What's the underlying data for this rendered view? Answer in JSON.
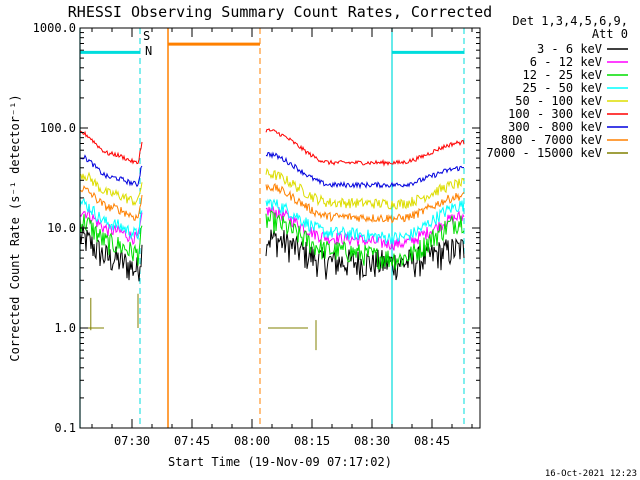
{
  "chart_data": {
    "type": "line",
    "title": "RHESSI Observing Summary Count Rates, Corrected",
    "xlabel": "Start Time (19-Nov-09 07:17:02)",
    "ylabel": "Corrected Count Rate (s⁻¹ detector⁻¹)",
    "yscale": "log",
    "ylim": [
      0.1,
      1000
    ],
    "xlim_minutes_after_0717": [
      0,
      100
    ],
    "y_ticks": [
      "0.1",
      "1.0",
      "10.0",
      "100.0",
      "1000.0"
    ],
    "x_ticks": [
      {
        "label": "07:30",
        "minute": 13
      },
      {
        "label": "07:45",
        "minute": 28
      },
      {
        "label": "08:00",
        "minute": 43
      },
      {
        "label": "08:15",
        "minute": 58
      },
      {
        "label": "08:30",
        "minute": 73
      },
      {
        "label": "08:45",
        "minute": 88
      }
    ],
    "legend_header": [
      "Det 1,3,4,5,6,9,",
      "Att 0"
    ],
    "legend_position": "right",
    "series": [
      {
        "name": "3 - 6 keV",
        "color": "#000000",
        "before": [
          8.0,
          5.0,
          3.8
        ],
        "after": [
          8.0,
          4.6,
          4.5,
          6.2
        ],
        "noise": 0.35
      },
      {
        "name": "6 - 12 keV",
        "color": "#ff00ff",
        "before": [
          15.0,
          9.5,
          7.8
        ],
        "after": [
          15.0,
          8.0,
          7.0,
          13.0
        ],
        "noise": 0.15
      },
      {
        "name": "12 - 25 keV",
        "color": "#00dd00",
        "before": [
          12.0,
          7.0,
          5.5
        ],
        "after": [
          12.0,
          6.0,
          5.0,
          12.0
        ],
        "noise": 0.25
      },
      {
        "name": "25 - 50 keV",
        "color": "#00ffff",
        "before": [
          18.0,
          11.0,
          8.5
        ],
        "after": [
          18.0,
          9.0,
          8.0,
          17.0
        ],
        "noise": 0.15
      },
      {
        "name": "50 - 100 keV",
        "color": "#dddd00",
        "before": [
          35.0,
          22.0,
          18.0
        ],
        "after": [
          35.0,
          18.0,
          17.5,
          28.0
        ],
        "noise": 0.12
      },
      {
        "name": "100 - 300 keV",
        "color": "#ff0000",
        "before": [
          90.0,
          55.0,
          44.0
        ],
        "after": [
          95.0,
          45.0,
          45.0,
          72.0
        ],
        "noise": 0.05
      },
      {
        "name": "300 - 800 keV",
        "color": "#0000dd",
        "before": [
          52.0,
          32.0,
          27.0
        ],
        "after": [
          55.0,
          27.0,
          27.0,
          40.0
        ],
        "noise": 0.06
      },
      {
        "name": "800 - 7000 keV",
        "color": "#ff8000",
        "before": [
          25.0,
          16.0,
          12.5
        ],
        "after": [
          26.0,
          13.0,
          12.5,
          21.0
        ],
        "noise": 0.1
      },
      {
        "name": "7000 - 15000 keV",
        "color": "#808000",
        "before": [
          1.0,
          1.0,
          1.0
        ],
        "after": [
          1.0,
          1.0
        ],
        "noise": 0.0
      }
    ],
    "before_window_minutes": [
      0,
      15.5
    ],
    "after_window_minutes": [
      46.5,
      100
    ],
    "markers": {
      "saa_label": "S",
      "night_label": "N",
      "night_color": "#00dddd",
      "saa_color": "#ff8000",
      "night_bars": [
        [
          0,
          15
        ],
        [
          78,
          96
        ]
      ],
      "saa_bar": [
        22,
        45
      ],
      "solid_night_lines_minutes": [
        0,
        78
      ],
      "dashed_night_lines_minutes": [
        15,
        96
      ],
      "solid_saa_line_minute": 22,
      "dashed_saa_line_minute": 45
    },
    "footer_timestamp": "16-Oct-2021 12:23"
  }
}
